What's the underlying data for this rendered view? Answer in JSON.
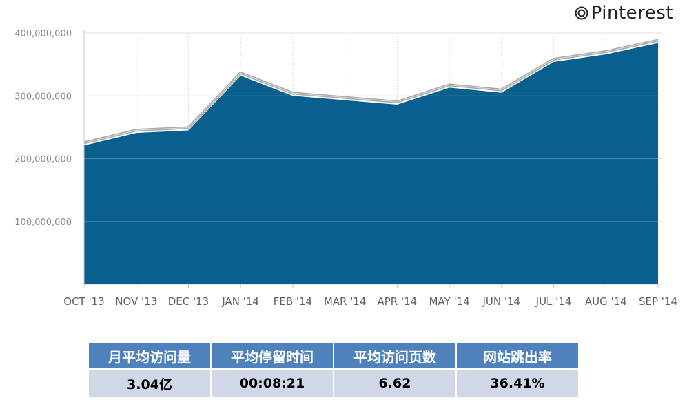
{
  "brand": {
    "name": "Pinterest",
    "icon": "pinterest-logo-icon"
  },
  "chart_data": {
    "type": "area",
    "categories": [
      "OCT '13",
      "NOV '13",
      "DEC '13",
      "JAN '14",
      "FEB '14",
      "MAR '14",
      "APR '14",
      "MAY '14",
      "JUN '14",
      "JUL '14",
      "AUG '14",
      "SEP '14"
    ],
    "series": [
      {
        "values": [
          221000000,
          241000000,
          245000000,
          332000000,
          300000000,
          293000000,
          286000000,
          313000000,
          305000000,
          354000000,
          366000000,
          384000000
        ],
        "color": "#09608f"
      }
    ],
    "ylim": [
      0,
      400000000
    ],
    "yticks": [
      100000000,
      200000000,
      300000000,
      400000000
    ],
    "ytick_labels": [
      "100,000,000",
      "200,000,000",
      "300,000,000",
      "400,000,000"
    ],
    "grid": true,
    "colors": {
      "area": "#09608f",
      "outline": "#a9a9a9",
      "grid": "#d6d6d6"
    }
  },
  "stats_table": {
    "headers": [
      "月平均访问量",
      "平均停留时间",
      "平均访问页数",
      "网站跳出率"
    ],
    "values": [
      "3.04亿",
      "00:08:21",
      "6.62",
      "36.41%"
    ],
    "colors": {
      "header_bg": "#4f81bd",
      "cell_bg": "#d0d8e8"
    }
  }
}
